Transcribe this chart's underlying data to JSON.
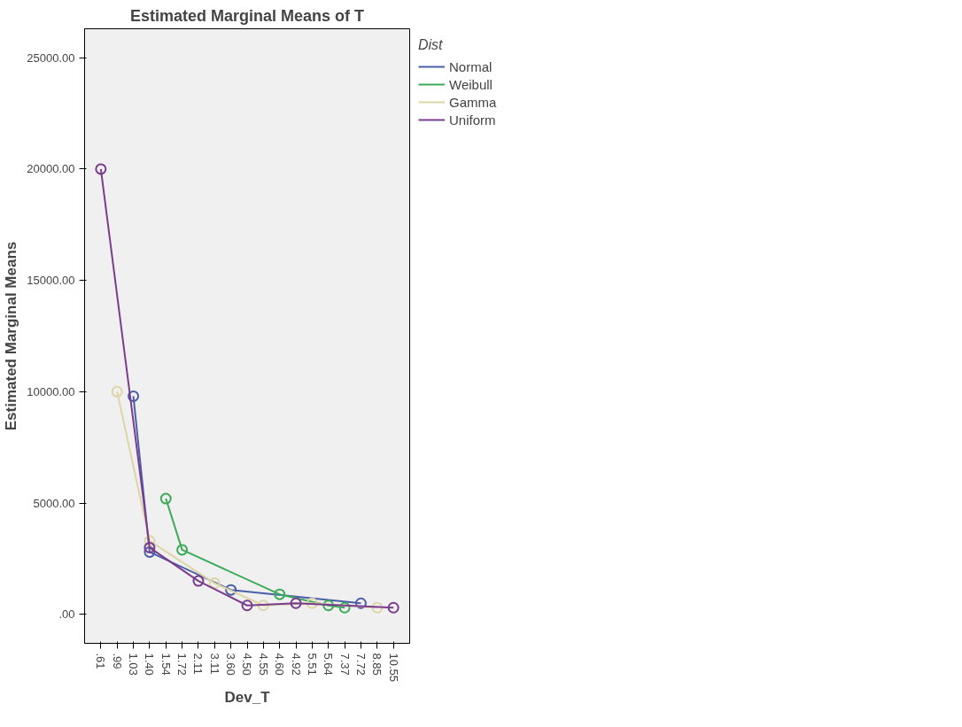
{
  "chart_data": {
    "type": "line",
    "title": "Estimated Marginal Means of T",
    "xlabel": "Dev_T",
    "ylabel": "Estimated Marginal Means",
    "legend_title": "Dist",
    "categories": [
      ".61",
      ".99",
      "1.03",
      "1.40",
      "1.54",
      "1.72",
      "2.11",
      "3.11",
      "3.60",
      "4.50",
      "4.55",
      "4.60",
      "4.92",
      "5.51",
      "5.64",
      "7.37",
      "7.72",
      "8.85",
      "10.55"
    ],
    "series": [
      {
        "name": "Normal",
        "color": "#4a5fa8",
        "values": [
          null,
          null,
          9800,
          2800,
          null,
          null,
          null,
          null,
          1100,
          null,
          null,
          null,
          null,
          null,
          null,
          null,
          500,
          null,
          null
        ]
      },
      {
        "name": "Weibull",
        "color": "#3daa5a",
        "values": [
          null,
          null,
          null,
          null,
          5200,
          2900,
          null,
          null,
          null,
          null,
          null,
          900,
          null,
          null,
          400,
          300,
          null,
          null,
          null
        ]
      },
      {
        "name": "Gamma",
        "color": "#ddd4a8",
        "values": [
          null,
          10000,
          null,
          3300,
          null,
          null,
          null,
          1400,
          null,
          null,
          400,
          null,
          null,
          500,
          null,
          null,
          null,
          300,
          null
        ]
      },
      {
        "name": "Uniform",
        "color": "#7a3c8c",
        "values": [
          20000,
          null,
          null,
          3000,
          null,
          null,
          1500,
          null,
          null,
          400,
          null,
          null,
          500,
          null,
          null,
          null,
          null,
          null,
          300
        ]
      }
    ],
    "ylim": [
      -1300,
      26300
    ],
    "yticks": [
      {
        "value": 0,
        "label": ".00"
      },
      {
        "value": 5000,
        "label": "5000.00"
      },
      {
        "value": 10000,
        "label": "10000.00"
      },
      {
        "value": 15000,
        "label": "15000.00"
      },
      {
        "value": 20000,
        "label": "20000.00"
      },
      {
        "value": 25000,
        "label": "25000.00"
      }
    ],
    "legend": "top right",
    "marker": "circle",
    "grid": false
  }
}
